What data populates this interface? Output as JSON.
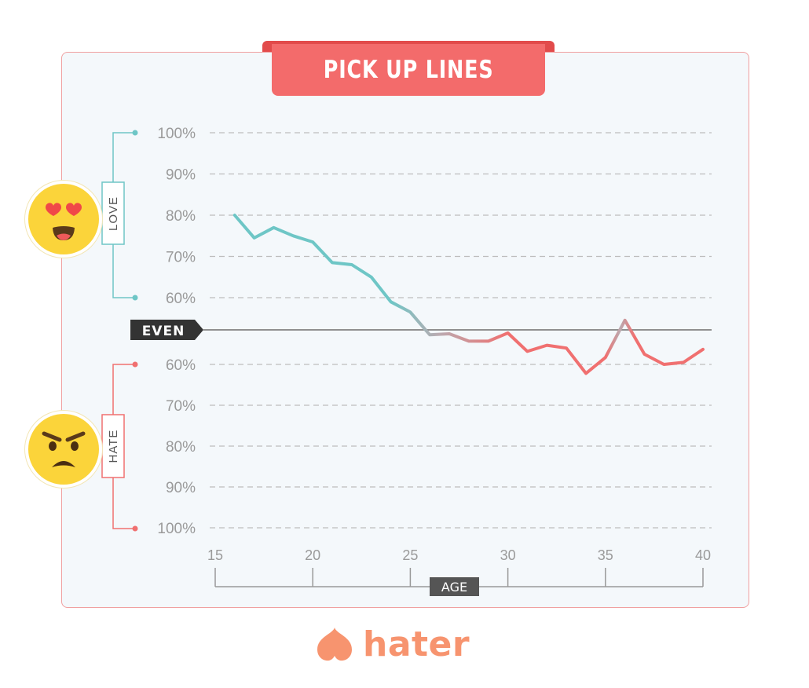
{
  "chart_data": {
    "type": "line",
    "title": "PICK UP LINES",
    "xlabel": "AGE",
    "xlim": [
      15,
      40
    ],
    "x_ticks": [
      "15",
      "20",
      "25",
      "30",
      "35",
      "40"
    ],
    "y_ticks_love": [
      "100%",
      "90%",
      "80%",
      "70%",
      "60%"
    ],
    "y_ticks_hate": [
      "60%",
      "70%",
      "80%",
      "90%",
      "100%"
    ],
    "love_label": "LOVE",
    "hate_label": "HATE",
    "even_label": "EVEN",
    "series": [
      {
        "x": [
          16,
          17,
          18,
          19,
          20,
          21,
          22,
          23,
          24,
          25,
          26,
          27,
          28,
          29,
          30,
          31,
          32,
          33,
          34,
          35,
          36,
          37,
          38,
          39,
          40
        ],
        "y": [
          80,
          74.5,
          77,
          75,
          73.5,
          68.5,
          68,
          65,
          59,
          56.5,
          51,
          -52.5,
          -54.3,
          -54.3,
          -52.3,
          -56.8,
          -55.3,
          -56,
          -62.2,
          -58.3,
          -49.2,
          -57.5,
          -60,
          -59.5,
          -56.3
        ]
      }
    ],
    "colors": {
      "love": "#6ec6c6",
      "hate": "#f07070",
      "neutral": "#bbaab0",
      "axis": "#909090",
      "grid": "#bdbdbd"
    },
    "grid": true
  },
  "brand": {
    "name": "hater"
  }
}
